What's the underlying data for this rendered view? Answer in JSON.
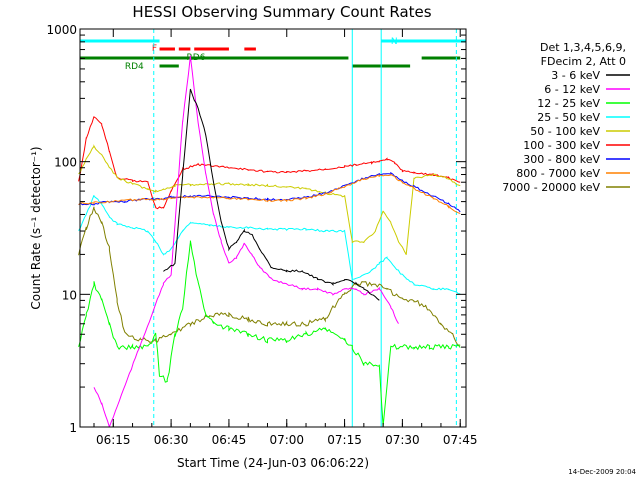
{
  "chart_data": {
    "type": "line",
    "title": "HESSI Observing Summary Count Rates",
    "xlabel": "Start Time (24-Jun-03 06:06:22)",
    "ylabel": "Count Rate (s⁻¹ detector⁻¹)",
    "x_unit": "time (HH:MM)",
    "xlim": [
      "06:06:22",
      "07:46:30"
    ],
    "ylim": [
      1,
      1000
    ],
    "y_scale": "log",
    "grid": false,
    "legend_position": "right, outside plot",
    "x_ticks": [
      "06:15",
      "06:30",
      "06:45",
      "07:00",
      "07:15",
      "07:30",
      "07:45"
    ],
    "y_ticks": [
      "1",
      "10",
      "100",
      "1000"
    ],
    "legend_header": [
      "Det 1,3,4,5,6,9,",
      "FDecim 2, Att 0"
    ],
    "footer": "14-Dec-2009 20:04",
    "flags": {
      "N": {
        "label": "N",
        "color": "#00ffff"
      },
      "F": {
        "label": "F",
        "color": "#ff0000"
      },
      "RD6": {
        "label": "RD6",
        "color": "#008000"
      },
      "RD4": {
        "label": "RD4",
        "color": "#008000"
      }
    },
    "series": [
      {
        "name": "3 - 6 keV",
        "color": "#000000",
        "points": [
          [
            "06:28",
            15
          ],
          [
            "06:31",
            17
          ],
          [
            "06:33",
            80
          ],
          [
            "06:35",
            350
          ],
          [
            "06:37",
            250
          ],
          [
            "06:39",
            160
          ],
          [
            "06:41",
            70
          ],
          [
            "06:43",
            35
          ],
          [
            "06:45",
            22
          ],
          [
            "06:47",
            25
          ],
          [
            "06:49",
            30
          ],
          [
            "06:51",
            28
          ],
          [
            "06:53",
            22
          ],
          [
            "06:56",
            16
          ],
          [
            "07:00",
            15
          ],
          [
            "07:04",
            15
          ],
          [
            "07:08",
            13
          ],
          [
            "07:12",
            12
          ],
          [
            "07:15",
            13
          ],
          [
            "07:18",
            12
          ],
          [
            "07:20",
            11
          ],
          [
            "07:24",
            9
          ]
        ]
      },
      {
        "name": "6 - 12 keV",
        "color": "#ff00ff",
        "points": [
          [
            "06:10",
            2
          ],
          [
            "06:12",
            1.5
          ],
          [
            "06:14",
            1
          ],
          [
            "06:28",
            12
          ],
          [
            "06:30",
            14
          ],
          [
            "06:33",
            200
          ],
          [
            "06:35",
            620
          ],
          [
            "06:37",
            200
          ],
          [
            "06:39",
            80
          ],
          [
            "06:41",
            40
          ],
          [
            "06:43",
            25
          ],
          [
            "06:45",
            17
          ],
          [
            "06:47",
            19
          ],
          [
            "06:49",
            24
          ],
          [
            "06:51",
            20
          ],
          [
            "06:53",
            16
          ],
          [
            "06:56",
            13
          ],
          [
            "07:00",
            12
          ],
          [
            "07:04",
            11
          ],
          [
            "07:08",
            11
          ],
          [
            "07:12",
            10
          ],
          [
            "07:15",
            11
          ],
          [
            "07:18",
            11
          ],
          [
            "07:20",
            10
          ],
          [
            "07:24",
            11
          ],
          [
            "07:27",
            8
          ],
          [
            "07:29",
            6
          ]
        ]
      },
      {
        "name": "12 - 25 keV",
        "color": "#00ff00",
        "points": [
          [
            "06:06",
            4
          ],
          [
            "06:08",
            7
          ],
          [
            "06:10",
            12
          ],
          [
            "06:12",
            9
          ],
          [
            "06:14",
            6
          ],
          [
            "06:16",
            4
          ],
          [
            "06:20",
            4
          ],
          [
            "06:24",
            4
          ],
          [
            "06:26",
            5
          ],
          [
            "06:27",
            2.5
          ],
          [
            "06:29",
            2.2
          ],
          [
            "06:31",
            5
          ],
          [
            "06:33",
            8
          ],
          [
            "06:35",
            25
          ],
          [
            "06:37",
            12
          ],
          [
            "06:39",
            7
          ],
          [
            "06:41",
            6
          ],
          [
            "06:45",
            5.5
          ],
          [
            "06:50",
            5
          ],
          [
            "06:55",
            4.5
          ],
          [
            "07:00",
            4.5
          ],
          [
            "07:05",
            5
          ],
          [
            "07:10",
            5.5
          ],
          [
            "07:15",
            4.5
          ],
          [
            "07:17",
            4
          ],
          [
            "07:20",
            3
          ],
          [
            "07:24",
            3
          ],
          [
            "07:25",
            1
          ],
          [
            "07:27",
            4
          ],
          [
            "07:29",
            4
          ],
          [
            "07:33",
            4
          ],
          [
            "07:37",
            4
          ],
          [
            "07:42",
            4
          ],
          [
            "07:45",
            4
          ]
        ]
      },
      {
        "name": "25 - 50 keV",
        "color": "#00ffff",
        "points": [
          [
            "06:06",
            30
          ],
          [
            "06:08",
            40
          ],
          [
            "06:10",
            55
          ],
          [
            "06:12",
            48
          ],
          [
            "06:14",
            38
          ],
          [
            "06:16",
            34
          ],
          [
            "06:20",
            32
          ],
          [
            "06:24",
            30
          ],
          [
            "06:26",
            25
          ],
          [
            "06:28",
            20
          ],
          [
            "06:30",
            22
          ],
          [
            "06:33",
            30
          ],
          [
            "06:35",
            35
          ],
          [
            "06:40",
            33
          ],
          [
            "06:45",
            32
          ],
          [
            "06:50",
            32
          ],
          [
            "06:55",
            31
          ],
          [
            "07:00",
            31
          ],
          [
            "07:05",
            31
          ],
          [
            "07:10",
            30
          ],
          [
            "07:15",
            30
          ],
          [
            "07:17",
            13
          ],
          [
            "07:20",
            14
          ],
          [
            "07:22",
            15
          ],
          [
            "07:24",
            17
          ],
          [
            "07:26",
            19
          ],
          [
            "07:29",
            15
          ],
          [
            "07:31",
            13
          ],
          [
            "07:33",
            12
          ],
          [
            "07:38",
            11
          ],
          [
            "07:42",
            11
          ],
          [
            "07:45",
            10
          ]
        ]
      },
      {
        "name": "50 - 100 keV",
        "color": "#cccc00",
        "points": [
          [
            "06:06",
            80
          ],
          [
            "06:08",
            105
          ],
          [
            "06:10",
            130
          ],
          [
            "06:12",
            112
          ],
          [
            "06:14",
            90
          ],
          [
            "06:16",
            76
          ],
          [
            "06:20",
            68
          ],
          [
            "06:24",
            62
          ],
          [
            "06:26",
            60
          ],
          [
            "06:28",
            62
          ],
          [
            "06:31",
            66
          ],
          [
            "06:35",
            67
          ],
          [
            "06:40",
            68
          ],
          [
            "06:45",
            68
          ],
          [
            "06:50",
            67
          ],
          [
            "06:55",
            66
          ],
          [
            "07:00",
            65
          ],
          [
            "07:05",
            62
          ],
          [
            "07:10",
            58
          ],
          [
            "07:15",
            55
          ],
          [
            "07:17",
            25
          ],
          [
            "07:20",
            25
          ],
          [
            "07:23",
            30
          ],
          [
            "07:25",
            42
          ],
          [
            "07:27",
            35
          ],
          [
            "07:29",
            25
          ],
          [
            "07:31",
            20
          ],
          [
            "07:33",
            75
          ],
          [
            "07:38",
            80
          ],
          [
            "07:42",
            75
          ],
          [
            "07:45",
            65
          ]
        ]
      },
      {
        "name": "100 - 300 keV",
        "color": "#ff0000",
        "points": [
          [
            "06:06",
            70
          ],
          [
            "06:08",
            150
          ],
          [
            "06:10",
            220
          ],
          [
            "06:12",
            190
          ],
          [
            "06:14",
            120
          ],
          [
            "06:16",
            75
          ],
          [
            "06:20",
            72
          ],
          [
            "06:24",
            70
          ],
          [
            "06:26",
            45
          ],
          [
            "06:28",
            45
          ],
          [
            "06:30",
            60
          ],
          [
            "06:33",
            88
          ],
          [
            "06:37",
            95
          ],
          [
            "06:41",
            93
          ],
          [
            "06:45",
            90
          ],
          [
            "06:50",
            87
          ],
          [
            "06:55",
            84
          ],
          [
            "07:00",
            83
          ],
          [
            "07:05",
            85
          ],
          [
            "07:10",
            88
          ],
          [
            "07:15",
            92
          ],
          [
            "07:18",
            95
          ],
          [
            "07:22",
            98
          ],
          [
            "07:24",
            100
          ],
          [
            "07:26",
            104
          ],
          [
            "07:28",
            98
          ],
          [
            "07:30",
            85
          ],
          [
            "07:33",
            82
          ],
          [
            "07:38",
            80
          ],
          [
            "07:42",
            75
          ],
          [
            "07:45",
            70
          ]
        ]
      },
      {
        "name": "300 - 800 keV",
        "color": "#0000ff",
        "points": [
          [
            "06:06",
            48
          ],
          [
            "06:10",
            48
          ],
          [
            "06:14",
            50
          ],
          [
            "06:18",
            50
          ],
          [
            "06:22",
            52
          ],
          [
            "06:26",
            52
          ],
          [
            "06:30",
            54
          ],
          [
            "06:35",
            55
          ],
          [
            "06:40",
            55
          ],
          [
            "06:45",
            54
          ],
          [
            "06:50",
            53
          ],
          [
            "06:55",
            52
          ],
          [
            "07:00",
            52
          ],
          [
            "07:05",
            54
          ],
          [
            "07:10",
            58
          ],
          [
            "07:15",
            66
          ],
          [
            "07:20",
            75
          ],
          [
            "07:24",
            80
          ],
          [
            "07:27",
            82
          ],
          [
            "07:30",
            72
          ],
          [
            "07:33",
            65
          ],
          [
            "07:38",
            55
          ],
          [
            "07:42",
            48
          ],
          [
            "07:45",
            42
          ]
        ]
      },
      {
        "name": "800 - 7000 keV",
        "color": "#ff8000",
        "points": [
          [
            "06:06",
            48
          ],
          [
            "06:10",
            49
          ],
          [
            "06:14",
            50
          ],
          [
            "06:18",
            51
          ],
          [
            "06:22",
            52
          ],
          [
            "06:26",
            52
          ],
          [
            "06:30",
            53
          ],
          [
            "06:35",
            54
          ],
          [
            "06:40",
            54
          ],
          [
            "06:45",
            53
          ],
          [
            "06:50",
            52
          ],
          [
            "06:55",
            51
          ],
          [
            "07:00",
            51
          ],
          [
            "07:05",
            53
          ],
          [
            "07:10",
            57
          ],
          [
            "07:15",
            65
          ],
          [
            "07:20",
            74
          ],
          [
            "07:24",
            79
          ],
          [
            "07:27",
            80
          ],
          [
            "07:30",
            70
          ],
          [
            "07:33",
            63
          ],
          [
            "07:38",
            53
          ],
          [
            "07:42",
            46
          ],
          [
            "07:45",
            40
          ]
        ]
      },
      {
        "name": "7000 - 20000 keV",
        "color": "#808000",
        "points": [
          [
            "06:06",
            20
          ],
          [
            "06:08",
            32
          ],
          [
            "06:10",
            45
          ],
          [
            "06:12",
            35
          ],
          [
            "06:14",
            22
          ],
          [
            "06:16",
            9
          ],
          [
            "06:18",
            5
          ],
          [
            "06:22",
            4.5
          ],
          [
            "06:26",
            4.5
          ],
          [
            "06:30",
            5
          ],
          [
            "06:35",
            6
          ],
          [
            "06:40",
            7
          ],
          [
            "06:45",
            7
          ],
          [
            "06:50",
            6.5
          ],
          [
            "06:55",
            6
          ],
          [
            "07:00",
            6
          ],
          [
            "07:05",
            6
          ],
          [
            "07:10",
            6.5
          ],
          [
            "07:12",
            8
          ],
          [
            "07:15",
            10
          ],
          [
            "07:18",
            12
          ],
          [
            "07:22",
            12
          ],
          [
            "07:26",
            11
          ],
          [
            "07:30",
            9
          ],
          [
            "07:33",
            9
          ],
          [
            "07:36",
            8
          ],
          [
            "07:40",
            6
          ],
          [
            "07:43",
            5
          ],
          [
            "07:45",
            4
          ]
        ]
      }
    ]
  }
}
